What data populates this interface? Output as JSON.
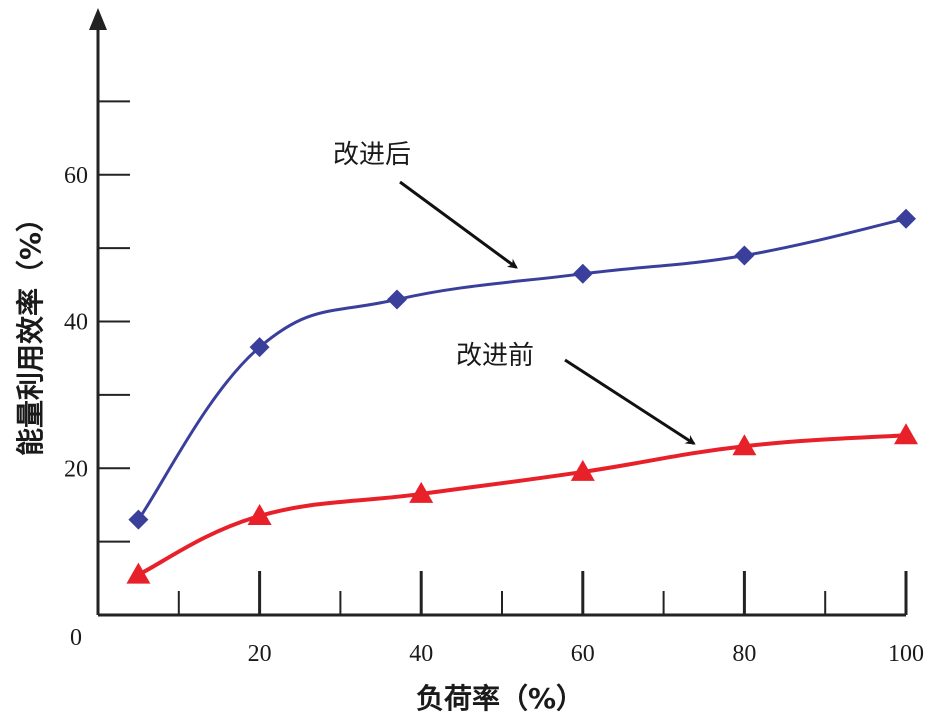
{
  "chart_data": {
    "type": "line",
    "xlabel": "负荷率（%）",
    "ylabel": "能量利用效率（%）",
    "xlim": [
      0,
      100
    ],
    "ylim": [
      0,
      80
    ],
    "x_ticks": [
      20,
      40,
      60,
      80,
      100
    ],
    "y_ticks": [
      20,
      40,
      60
    ],
    "origin_label": "0",
    "series": [
      {
        "name": "改进后",
        "color": "#3a3f9c",
        "marker": "diamond",
        "x": [
          5,
          20,
          37,
          60,
          80,
          100
        ],
        "y": [
          13,
          36.5,
          43,
          46.5,
          49,
          54
        ]
      },
      {
        "name": "改进前",
        "color": "#e8202a",
        "marker": "triangle",
        "x": [
          5,
          20,
          40,
          60,
          80,
          100
        ],
        "y": [
          5.5,
          13.5,
          16.5,
          19.5,
          23,
          24.5
        ]
      }
    ],
    "annotations": [
      {
        "text": "改进后",
        "series": 0,
        "target_x": 53,
        "target_y": 46
      },
      {
        "text": "改进前",
        "series": 1,
        "target_x": 75,
        "target_y": 22
      }
    ],
    "grid": false,
    "legend": "none"
  }
}
